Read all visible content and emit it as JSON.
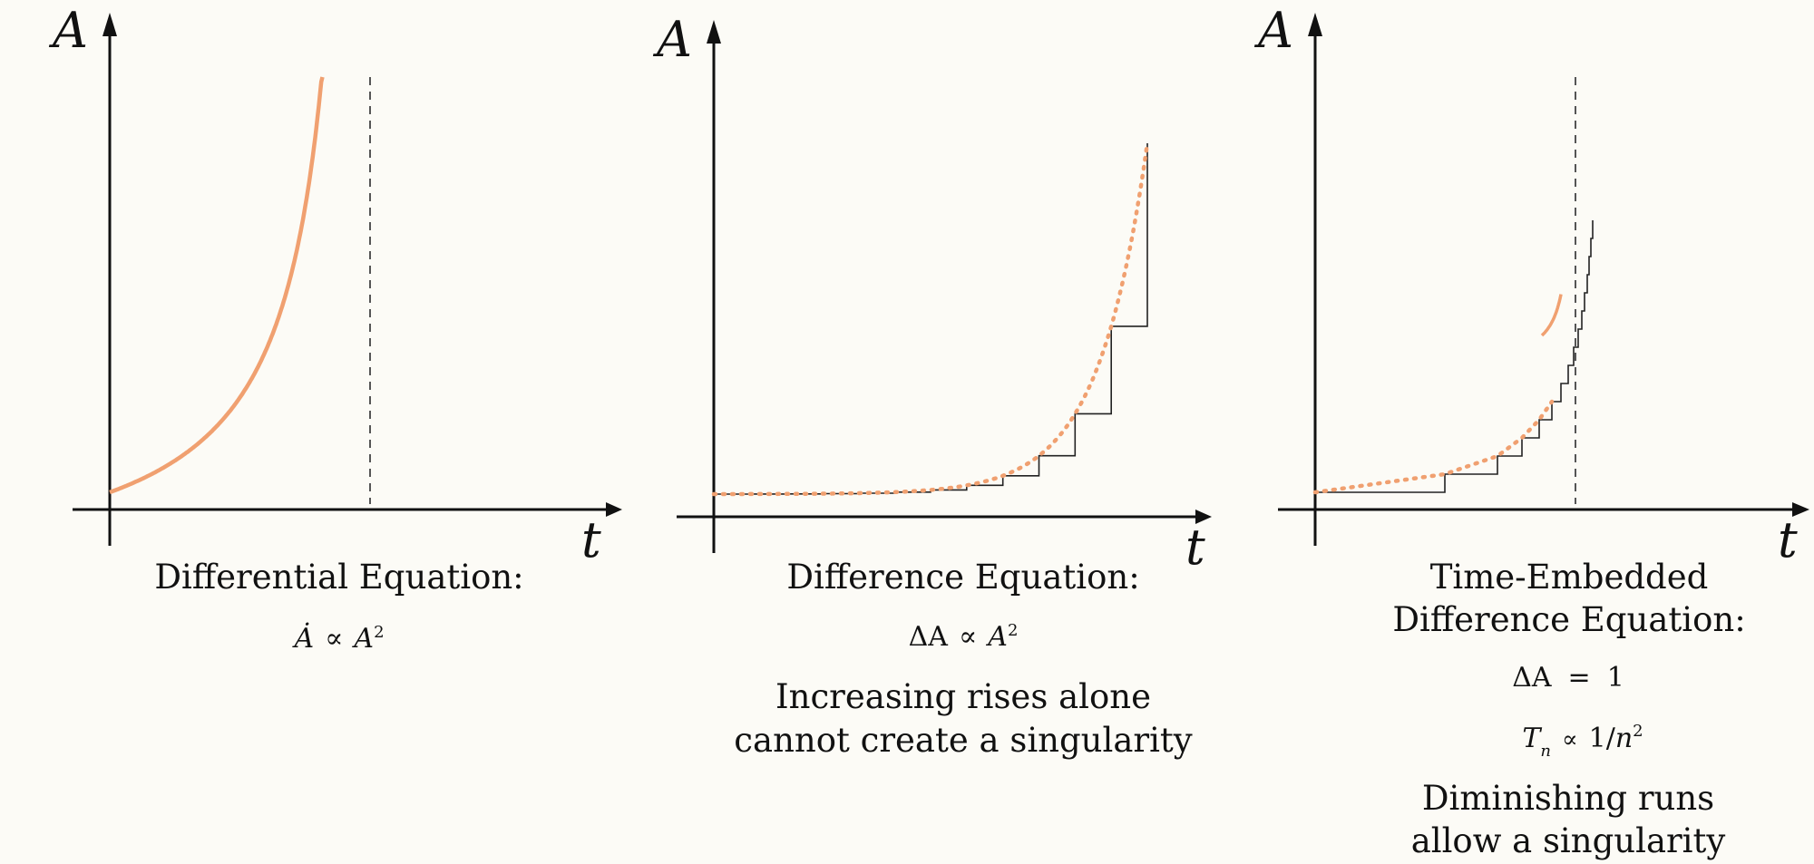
{
  "panels": [
    {
      "y_axis_label": "A",
      "x_axis_label": "t",
      "title": "Differential Equation:",
      "formula": {
        "lhs": "Ȧ",
        "rel": "∝",
        "rhs": "A",
        "rhs_exp": "2"
      }
    },
    {
      "y_axis_label": "A",
      "x_axis_label": "t",
      "title": "Difference Equation:",
      "formula": {
        "lhs": "ΔA",
        "rel": "∝",
        "rhs": "A",
        "rhs_exp": "2"
      },
      "note_line1": "Increasing rises alone",
      "note_line2": "cannot create a singularity"
    },
    {
      "y_axis_label": "A",
      "x_axis_label": "t",
      "title_line1": "Time-Embedded",
      "title_line2": "Difference Equation:",
      "formula1": {
        "lhs": "ΔA",
        "rel": "=",
        "rhs": "1"
      },
      "formula2": {
        "lhs": "T",
        "lhs_sub": "n",
        "rel": "∝",
        "rhs": "1/",
        "rhs_var": "n",
        "rhs_exp": "2"
      },
      "note_line1": "Diminishing runs",
      "note_line2": "allow a singularity"
    }
  ],
  "colors": {
    "background": "#fcfbf6",
    "curve": "#f0a070",
    "axis": "#111111",
    "step": "#222222",
    "asymptote": "#555555"
  }
}
